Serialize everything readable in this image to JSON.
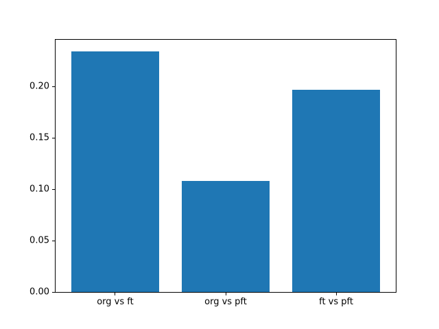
{
  "chart_data": {
    "type": "bar",
    "categories": [
      "org vs ft",
      "org vs pft",
      "ft vs pft"
    ],
    "values": [
      0.234,
      0.108,
      0.197
    ],
    "title": "",
    "xlabel": "",
    "ylabel": "",
    "xlim": [
      -0.54,
      2.54
    ],
    "ylim": [
      0,
      0.2455
    ],
    "ytick_values": [
      0,
      0.05,
      0.1,
      0.15,
      0.2
    ],
    "ytick_labels": [
      "0.00",
      "0.05",
      "0.10",
      "0.15",
      "0.20"
    ],
    "bar_width": 0.8,
    "bar_color": "#1f77b4",
    "axis_color": "#000000",
    "background_color": "#ffffff",
    "grid": false,
    "legend": false
  }
}
